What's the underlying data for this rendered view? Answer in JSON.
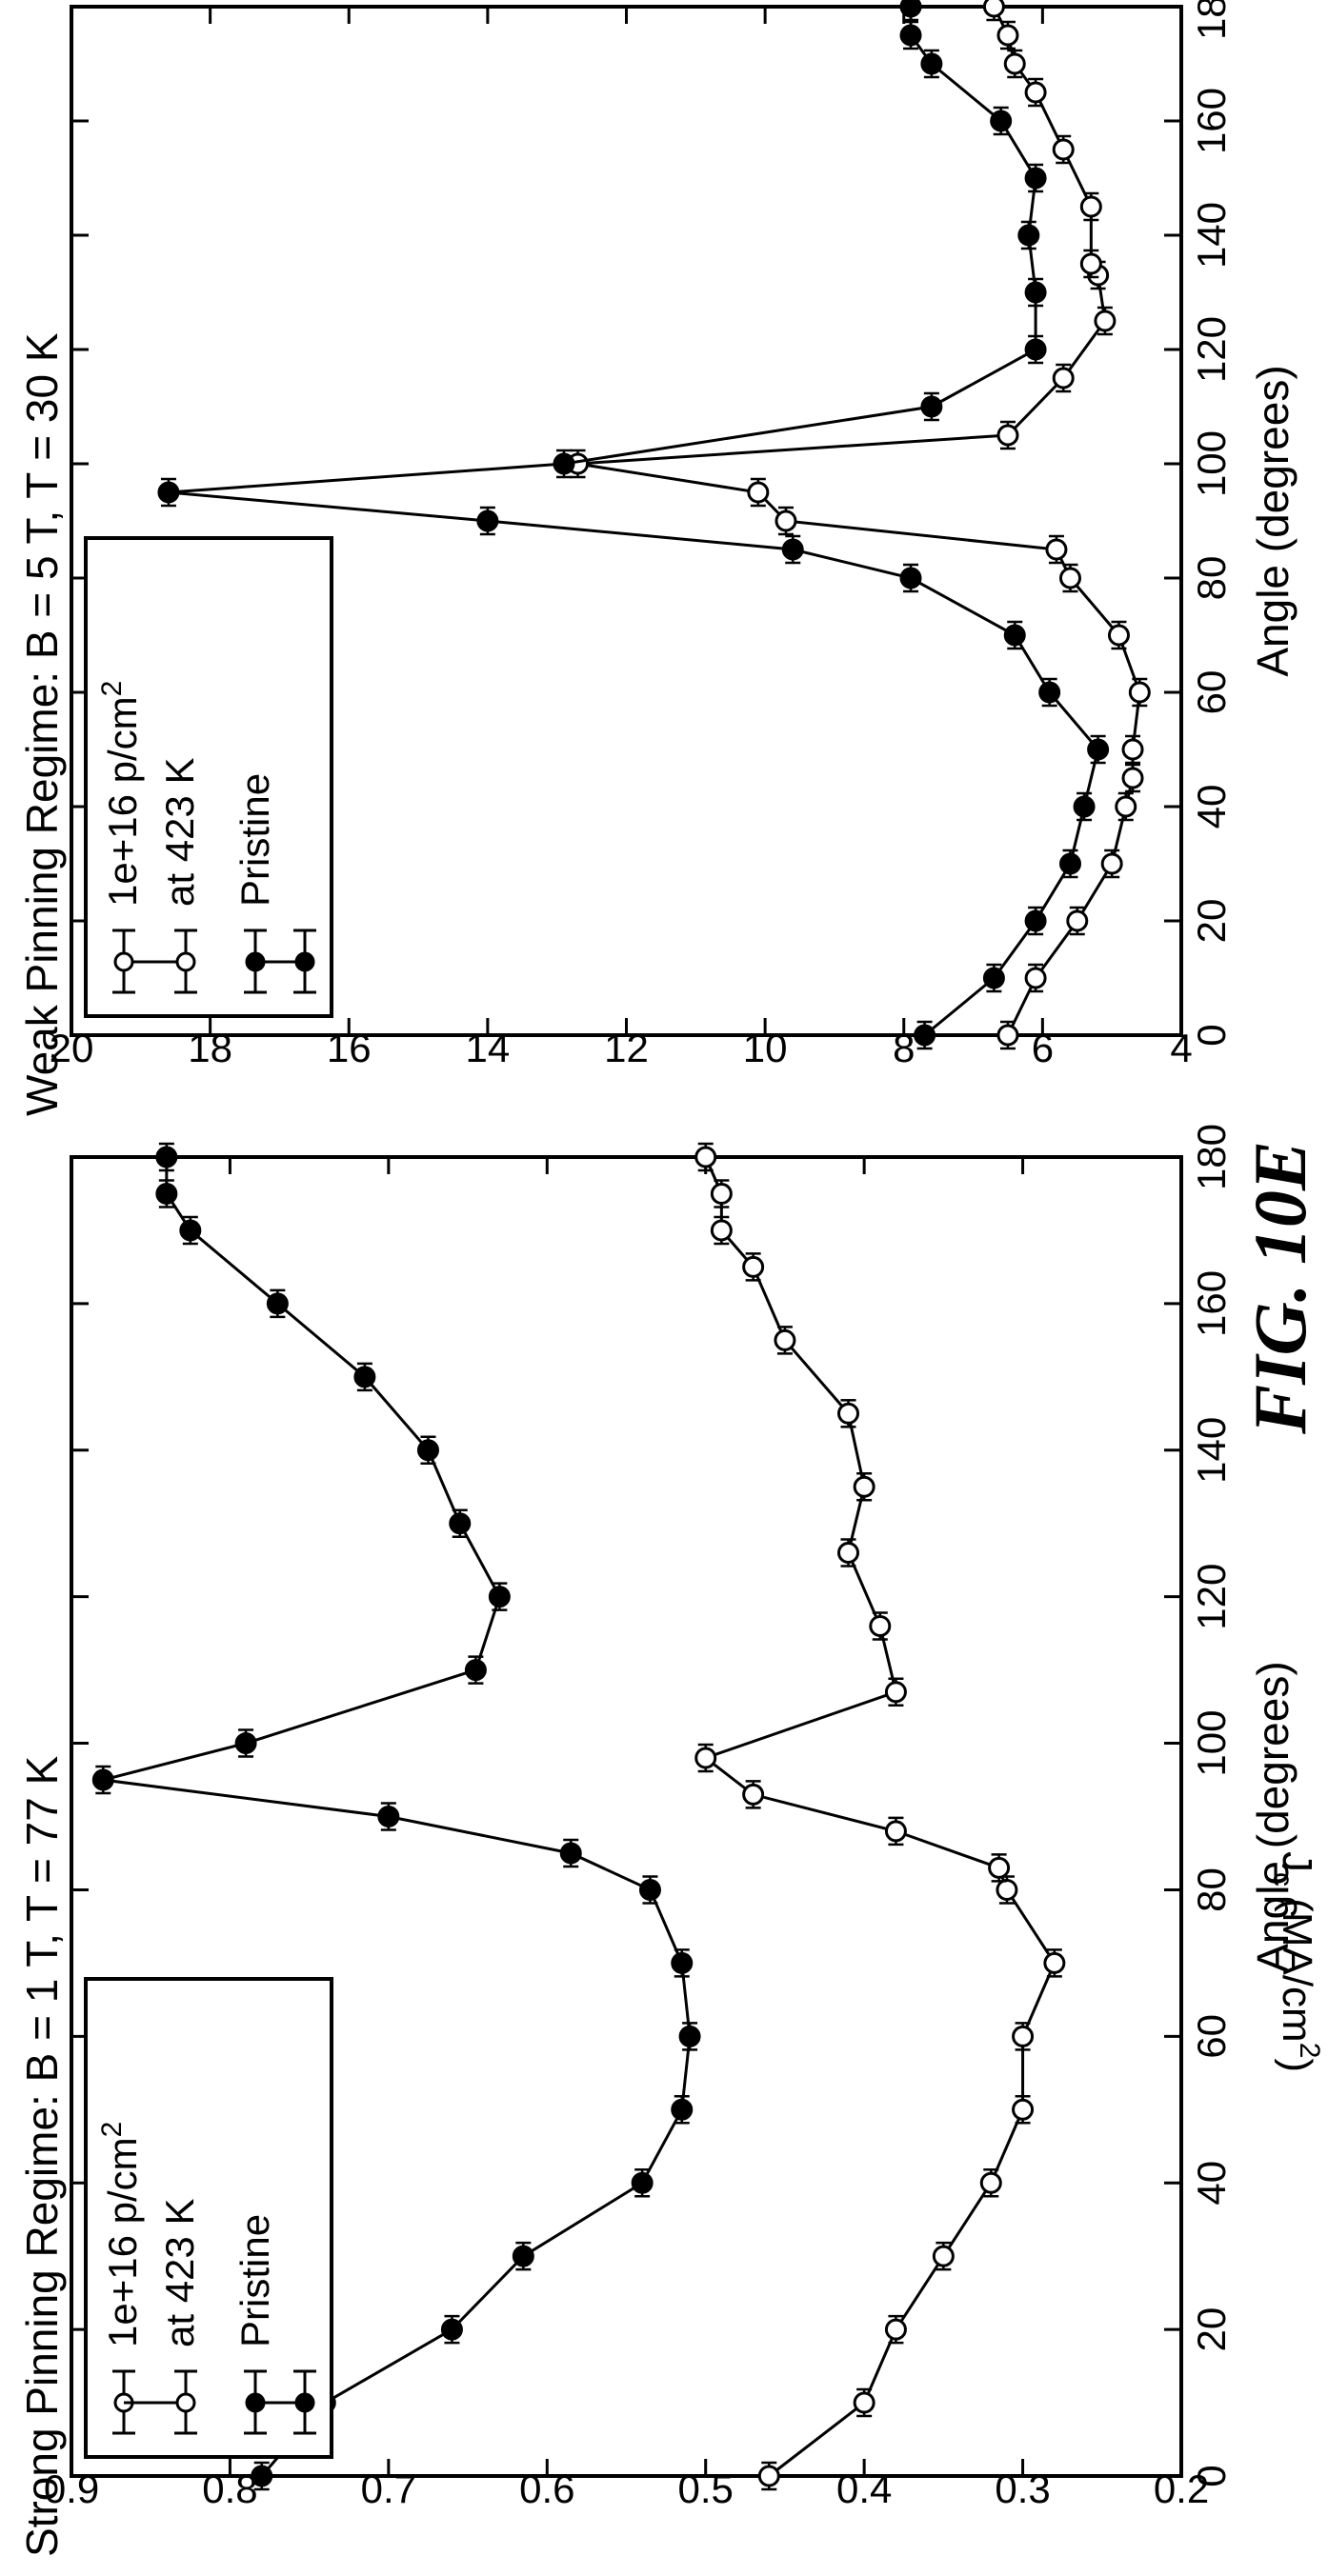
{
  "figure_label": "FIG. 10E",
  "chart_data": [
    {
      "type": "line",
      "title": "Strong Pinning Regime: B = 1 T, T = 77 K",
      "xlabel": "Angle (degrees)",
      "ylabel": "J_c (MA/cm²)",
      "ylabel_parts": {
        "main": "J",
        "sub": "c",
        "rest": " (MA/cm",
        "sup": "2",
        "close": ")"
      },
      "xlim": [
        0,
        180
      ],
      "ylim": [
        0.2,
        0.9
      ],
      "xticks": [
        0,
        20,
        40,
        60,
        80,
        100,
        120,
        140,
        160,
        180
      ],
      "xtick_labels": [
        "0",
        "20",
        "40",
        "60",
        "80",
        "100",
        "120",
        "140",
        "160",
        "180"
      ],
      "yticks": [
        0.2,
        0.3,
        0.4,
        0.5,
        0.6,
        0.7,
        0.8,
        0.9
      ],
      "ytick_labels": [
        "0.2",
        "0.3",
        "0.4",
        "0.5",
        "0.6",
        "0.7",
        "0.8",
        "0.9"
      ],
      "grid": false,
      "legend_position": "top-left",
      "series": [
        {
          "name": "1e+16 p/cm² at 423 K",
          "legend_line1": "1e+16 p/cm",
          "legend_sup": "2",
          "legend_line2": "at 423 K",
          "marker": "open-circle",
          "x": [
            0,
            10,
            20,
            30,
            40,
            50,
            60,
            70,
            80,
            83,
            88,
            93,
            98,
            107,
            116,
            126,
            135,
            145,
            155,
            165,
            170,
            175,
            180
          ],
          "y": [
            0.46,
            0.4,
            0.38,
            0.35,
            0.32,
            0.3,
            0.3,
            0.28,
            0.31,
            0.315,
            0.38,
            0.47,
            0.5,
            0.38,
            0.39,
            0.41,
            0.4,
            0.41,
            0.45,
            0.47,
            0.49,
            0.49,
            0.5
          ]
        },
        {
          "name": "Pristine",
          "marker": "filled-circle",
          "x": [
            0,
            10,
            20,
            30,
            40,
            50,
            60,
            70,
            80,
            85,
            90,
            95,
            100,
            110,
            120,
            130,
            140,
            150,
            160,
            170,
            175,
            180
          ],
          "y": [
            0.78,
            0.74,
            0.66,
            0.615,
            0.54,
            0.515,
            0.51,
            0.515,
            0.535,
            0.585,
            0.7,
            0.88,
            0.79,
            0.645,
            0.63,
            0.655,
            0.675,
            0.715,
            0.77,
            0.825,
            0.84,
            0.84
          ]
        }
      ]
    },
    {
      "type": "line",
      "title": "Weak Pinning Regime: B = 5 T, T = 30 K",
      "xlabel": "Angle (degrees)",
      "ylabel": "",
      "xlim": [
        0,
        180
      ],
      "ylim": [
        4,
        20
      ],
      "xticks": [
        0,
        20,
        40,
        60,
        80,
        100,
        120,
        140,
        160,
        180
      ],
      "xtick_labels": [
        "0",
        "20",
        "40",
        "60",
        "80",
        "100",
        "120",
        "140",
        "160",
        "180"
      ],
      "yticks": [
        4,
        6,
        8,
        10,
        12,
        14,
        16,
        18,
        20
      ],
      "ytick_labels": [
        "4",
        "6",
        "8",
        "10",
        "12",
        "14",
        "16",
        "18",
        "20"
      ],
      "grid": false,
      "legend_position": "top-left",
      "series": [
        {
          "name": "1e+16 p/cm² at 423 K",
          "legend_line1": "1e+16 p/cm",
          "legend_sup": "2",
          "legend_line2": "at 423 K",
          "marker": "open-circle",
          "x": [
            0,
            10,
            20,
            30,
            40,
            45,
            50,
            60,
            70,
            80,
            85,
            90,
            95,
            100,
            105,
            115,
            125,
            133,
            135,
            145,
            155,
            165,
            170,
            175,
            180
          ],
          "y": [
            6.5,
            6.1,
            5.5,
            5.0,
            4.8,
            4.7,
            4.7,
            4.6,
            4.9,
            5.6,
            5.8,
            9.7,
            10.1,
            12.7,
            6.5,
            5.7,
            5.1,
            5.2,
            5.3,
            5.3,
            5.7,
            6.1,
            6.4,
            6.5,
            6.7
          ]
        },
        {
          "name": "Pristine",
          "marker": "filled-circle",
          "x": [
            0,
            10,
            20,
            30,
            40,
            50,
            60,
            70,
            80,
            85,
            90,
            95,
            100,
            110,
            120,
            130,
            140,
            150,
            160,
            170,
            175,
            180
          ],
          "y": [
            7.7,
            6.7,
            6.1,
            5.6,
            5.4,
            5.2,
            5.9,
            6.4,
            7.9,
            9.6,
            14.0,
            18.6,
            12.9,
            7.6,
            6.1,
            6.1,
            6.2,
            6.1,
            6.6,
            7.6,
            7.9,
            7.9
          ]
        }
      ]
    }
  ]
}
